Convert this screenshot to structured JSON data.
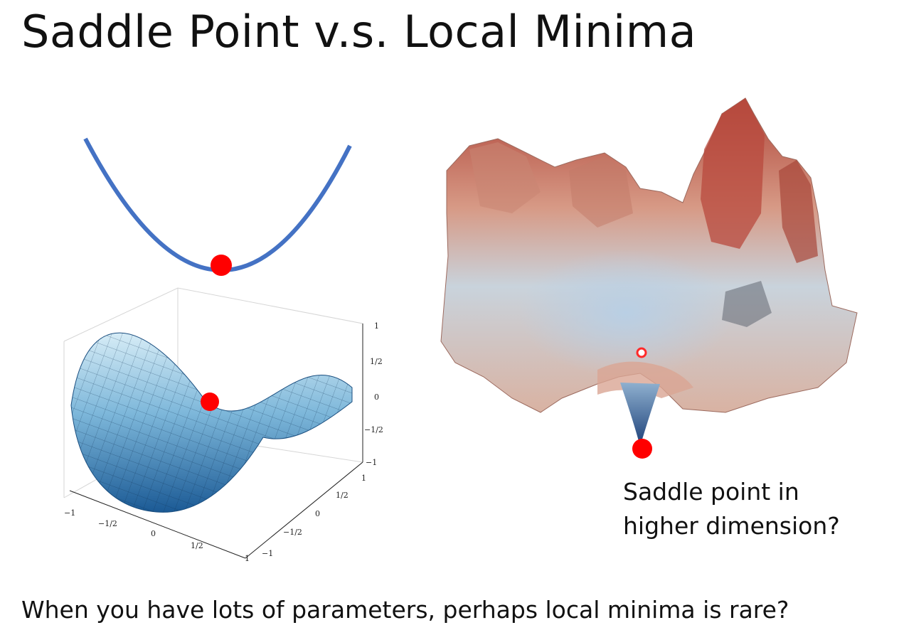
{
  "slide": {
    "title": "Saddle Point v.s. Local Minima",
    "caption_line1": "Saddle point in",
    "caption_line2": "higher dimension?",
    "bottom_text": "When you have lots of parameters, perhaps local minima is rare?"
  },
  "saddle_plot": {
    "z_ticks": [
      "1",
      "1/2",
      "0",
      "−1/2",
      "−1"
    ],
    "x_ticks": [
      "−1",
      "−1/2",
      "0",
      "1/2",
      "1"
    ],
    "y_ticks": [
      "−1",
      "−1/2",
      "0",
      "1/2",
      "1"
    ]
  },
  "colors": {
    "parabola": "#4472c4",
    "ball": "#ff0000",
    "saddle_light": "#cfe6f2",
    "saddle_dark": "#1e5f9a",
    "landscape_red": "#b5483a",
    "landscape_blue": "#8aa8c8"
  }
}
